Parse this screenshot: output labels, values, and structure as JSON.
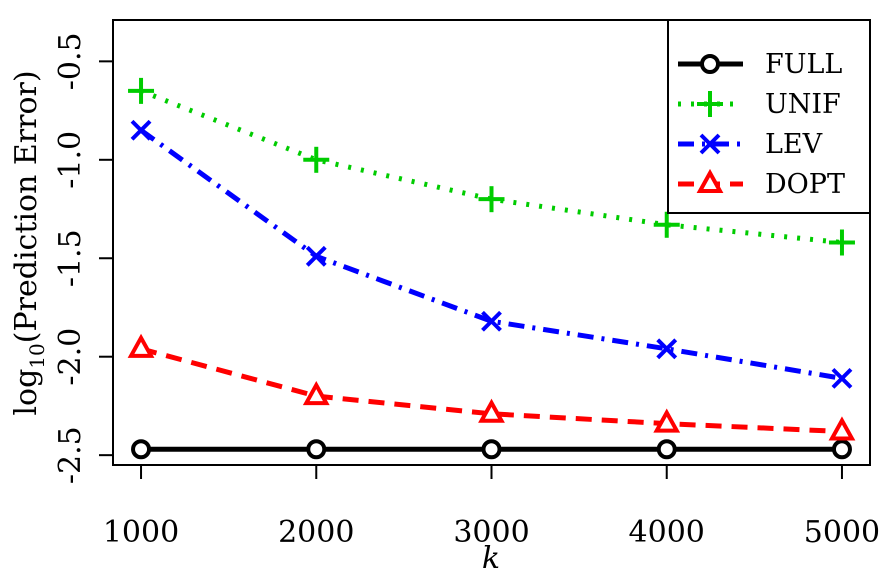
{
  "chart_data": {
    "type": "line",
    "title": "",
    "xlabel": "k",
    "ylabel": "log10(Prediction Error)",
    "ylabel_parts": {
      "prefix": "log",
      "subscript": "10",
      "rest": "(Prediction Error)"
    },
    "x": [
      1000,
      2000,
      3000,
      4000,
      5000
    ],
    "xticks": [
      "1000",
      "2000",
      "3000",
      "4000",
      "5000"
    ],
    "yticks": [
      {
        "value": -2.5,
        "label": "-2.5"
      },
      {
        "value": -2.0,
        "label": "-2.0"
      },
      {
        "value": -1.5,
        "label": "-1.5"
      },
      {
        "value": -1.0,
        "label": "-1.0"
      },
      {
        "value": -0.5,
        "label": "-0.5"
      }
    ],
    "xlim": [
      840,
      5160
    ],
    "ylim": [
      -2.55,
      -0.29
    ],
    "grid": false,
    "legend_position": "top-right",
    "series": [
      {
        "name": "FULL",
        "color": "#000000",
        "marker": "circle",
        "dash": "solid",
        "values": [
          -2.47,
          -2.47,
          -2.47,
          -2.47,
          -2.47
        ]
      },
      {
        "name": "UNIF",
        "color": "#00cc00",
        "marker": "plus",
        "dash": "dotted",
        "values": [
          -0.65,
          -1.0,
          -1.2,
          -1.33,
          -1.42
        ]
      },
      {
        "name": "LEV",
        "color": "#0000ff",
        "marker": "x",
        "dash": "dashdot",
        "values": [
          -0.85,
          -1.49,
          -1.82,
          -1.96,
          -2.11
        ]
      },
      {
        "name": "DOPT",
        "color": "#ff0000",
        "marker": "triangle",
        "dash": "dashed",
        "values": [
          -1.96,
          -2.2,
          -2.29,
          -2.34,
          -2.38
        ]
      }
    ]
  }
}
